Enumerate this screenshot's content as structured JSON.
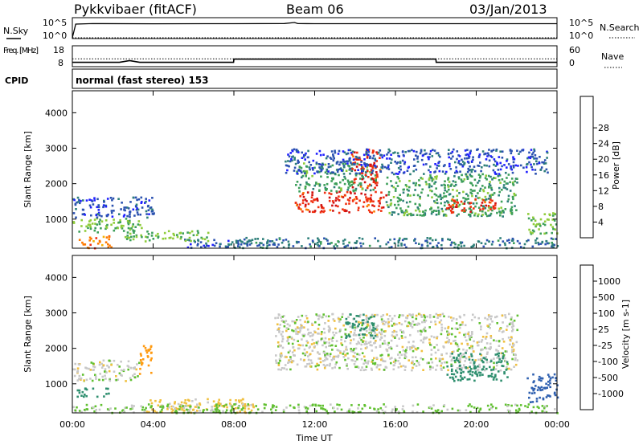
{
  "header": {
    "station": "Pykkvibaer (fitACF)",
    "beam": "Beam 06",
    "date": "03/Jan/2013"
  },
  "cpid_text": "normal (fast stereo) 153",
  "colors": {
    "power_scale": [
      "#2020ff",
      "#2b52b0",
      "#2e7f7a",
      "#3d9f5a",
      "#8fcc3a",
      "#f5b000",
      "#ff7a00",
      "#f03010",
      "#d01010"
    ],
    "velocity_scale": [
      "#e00000",
      "#ff5000",
      "#ff9a10",
      "#f0c040",
      "#c8c8c8",
      "#60c030",
      "#2f8f6f",
      "#2f60b0",
      "#2030d0"
    ],
    "trace": "#000000"
  },
  "chart_data": [
    {
      "type": "line",
      "panel": "noise",
      "series": [
        {
          "name": "N.Sky",
          "style": "solid",
          "x": [
            "00:00",
            "00:10",
            "01:00",
            "04:00",
            "08:00",
            "10:30",
            "11:00",
            "11:10",
            "12:00",
            "16:00",
            "20:00",
            "24:00"
          ],
          "y": [
            1,
            100000,
            150000,
            130000,
            140000,
            160000,
            400000,
            150000,
            140000,
            140000,
            140000,
            140000
          ]
        },
        {
          "name": "N.Search",
          "style": "dotted",
          "x": [
            "00:00",
            "24:00"
          ],
          "y": [
            1,
            1
          ]
        }
      ],
      "ylabel": "N.Sky",
      "right_label": "N.Search",
      "left_ticks": [
        "10^5",
        "10^0"
      ],
      "right_ticks": [
        "10^5",
        "10^0"
      ],
      "scale": "log"
    },
    {
      "type": "line",
      "panel": "frequency",
      "series": [
        {
          "name": "Freq. [MHz]",
          "style": "solid",
          "x": [
            "00:00",
            "02:20",
            "02:50",
            "03:20",
            "07:59",
            "08:00",
            "18:00",
            "18:01",
            "24:00"
          ],
          "y": [
            10.0,
            10.0,
            11.0,
            10.0,
            10.0,
            11.8,
            11.8,
            10.0,
            10.0
          ]
        },
        {
          "name": "Nave",
          "style": "dotted",
          "x": [
            "00:00",
            "24:00"
          ],
          "y": [
            24,
            24
          ]
        }
      ],
      "ylabel": "Freq. [MHz]",
      "yticks": [
        "18",
        "8"
      ],
      "ylim": [
        8,
        18
      ],
      "right_label": "Nave",
      "right_ticks": [
        "60",
        "0"
      ],
      "right_ylim": [
        0,
        60
      ]
    },
    {
      "type": "heatmap",
      "panel": "power",
      "xlabel": "",
      "ylabel": "Slant Range [km]",
      "yticks": [
        "1000",
        "2000",
        "3000",
        "4000"
      ],
      "ylim": [
        180,
        4620
      ],
      "colorbar_label": "Power [dB]",
      "colorbar_ticks": [
        "4",
        "8",
        "12",
        "16",
        "20",
        "24",
        "28"
      ],
      "regions": [
        {
          "x": [
            0.0,
            3.4
          ],
          "y": [
            650,
            1050
          ],
          "value": 14
        },
        {
          "x": [
            0.0,
            4.0
          ],
          "y": [
            1050,
            1650
          ],
          "value": 5
        },
        {
          "x": [
            0.3,
            1.9
          ],
          "y": [
            200,
            550
          ],
          "value": 22
        },
        {
          "x": [
            5.5,
            8.5
          ],
          "y": [
            200,
            450
          ],
          "value": 6
        },
        {
          "x": [
            2.5,
            6.8
          ],
          "y": [
            400,
            700
          ],
          "value": 14
        },
        {
          "x": [
            11.0,
            15.5
          ],
          "y": [
            1200,
            1800
          ],
          "value": 27
        },
        {
          "x": [
            11.0,
            15.0
          ],
          "y": [
            1800,
            2600
          ],
          "value": 12
        },
        {
          "x": [
            13.8,
            15.2
          ],
          "y": [
            1900,
            3000
          ],
          "value": 27
        },
        {
          "x": [
            15.5,
            22.0
          ],
          "y": [
            1100,
            2300
          ],
          "value": 12
        },
        {
          "x": [
            18.5,
            21.0
          ],
          "y": [
            1200,
            1600
          ],
          "value": 26
        },
        {
          "x": [
            10.5,
            23.5
          ],
          "y": [
            2300,
            3000
          ],
          "value": 5
        },
        {
          "x": [
            22.5,
            24.0
          ],
          "y": [
            600,
            1200
          ],
          "value": 14
        },
        {
          "x": [
            8.0,
            24.0
          ],
          "y": [
            200,
            500
          ],
          "value": 8
        }
      ]
    },
    {
      "type": "heatmap",
      "panel": "velocity",
      "xlabel": "Time UT",
      "ylabel": "Slant Range [km]",
      "xticks": [
        "00:00",
        "04:00",
        "08:00",
        "12:00",
        "16:00",
        "20:00",
        "00:00"
      ],
      "yticks": [
        "1000",
        "2000",
        "3000",
        "4000"
      ],
      "ylim": [
        180,
        4620
      ],
      "colorbar_label": "Velocity [m s-1]",
      "colorbar_ticks": [
        "1000",
        "500",
        "100",
        "25",
        "-25",
        "-100",
        "-500",
        "-1000"
      ],
      "regions": [
        {
          "x": [
            0.0,
            3.3
          ],
          "y": [
            1100,
            1700
          ],
          "value": 0
        },
        {
          "x": [
            0.2,
            1.8
          ],
          "y": [
            650,
            900
          ],
          "value": 300
        },
        {
          "x": [
            3.2,
            3.9
          ],
          "y": [
            1300,
            2100
          ],
          "value": -300
        },
        {
          "x": [
            3.5,
            9.0
          ],
          "y": [
            200,
            600
          ],
          "value": -60
        },
        {
          "x": [
            10.0,
            22.0
          ],
          "y": [
            1400,
            3000
          ],
          "value": 0
        },
        {
          "x": [
            13.5,
            15.0
          ],
          "y": [
            2300,
            3000
          ],
          "value": 300
        },
        {
          "x": [
            18.5,
            21.5
          ],
          "y": [
            1100,
            1900
          ],
          "value": 200
        },
        {
          "x": [
            22.5,
            24.0
          ],
          "y": [
            500,
            1300
          ],
          "value": 700
        },
        {
          "x": [
            0.0,
            24.0
          ],
          "y": [
            200,
            450
          ],
          "value": 40
        }
      ]
    }
  ]
}
